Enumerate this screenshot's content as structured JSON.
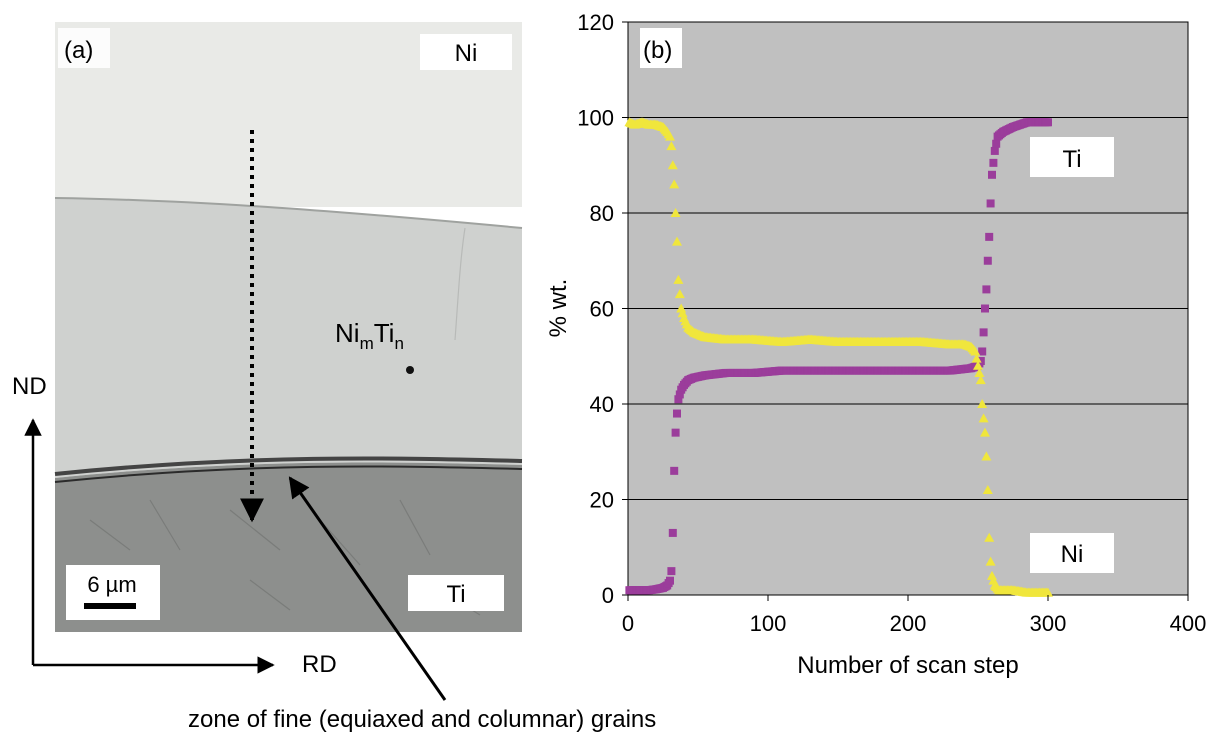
{
  "panel_a": {
    "label": "(a)",
    "phase_top": "Ni",
    "phase_bottom": "Ti",
    "phase_middle_base1": "Ni",
    "phase_middle_sub1": "m",
    "phase_middle_base2": "Ti",
    "phase_middle_sub2": "n",
    "scale_bar": "6 µm",
    "axis_nd": "ND",
    "axis_rd": "RD",
    "annotation": "zone of fine (equiaxed and columnar) grains"
  },
  "chart_data": {
    "type": "scatter",
    "panel_label": "(b)",
    "xlabel": "Number of scan step",
    "ylabel": "% wt.",
    "xlim": [
      0,
      400
    ],
    "ylim": [
      0,
      120
    ],
    "xticks": [
      "0",
      "100",
      "200",
      "300",
      "400"
    ],
    "yticks": [
      "0",
      "20",
      "40",
      "60",
      "80",
      "100",
      "120"
    ],
    "grid": "horizontal",
    "annotations": [
      "Ti",
      "Ni"
    ],
    "series": [
      {
        "marker": "square",
        "color": "#9b3d9b",
        "points": [
          [
            1,
            1
          ],
          [
            5,
            1
          ],
          [
            10,
            1
          ],
          [
            15,
            1
          ],
          [
            20,
            1.2
          ],
          [
            25,
            1.5
          ],
          [
            28,
            2
          ],
          [
            30,
            3
          ],
          [
            31,
            5
          ],
          [
            32,
            13
          ],
          [
            33,
            26
          ],
          [
            34,
            34
          ],
          [
            35,
            38
          ],
          [
            36,
            41
          ],
          [
            37,
            42
          ],
          [
            38,
            43
          ],
          [
            40,
            44
          ],
          [
            43,
            45
          ],
          [
            47,
            45.5
          ],
          [
            55,
            46
          ],
          [
            70,
            46.5
          ],
          [
            90,
            46.5
          ],
          [
            110,
            47
          ],
          [
            130,
            47
          ],
          [
            150,
            47
          ],
          [
            170,
            47
          ],
          [
            190,
            47
          ],
          [
            210,
            47
          ],
          [
            230,
            47
          ],
          [
            245,
            47.5
          ],
          [
            250,
            48
          ],
          [
            252,
            49
          ],
          [
            253,
            51
          ],
          [
            254,
            55
          ],
          [
            255,
            60
          ],
          [
            256,
            64
          ],
          [
            257,
            70
          ],
          [
            258,
            75
          ],
          [
            259,
            82
          ],
          [
            260,
            88
          ],
          [
            262,
            93
          ],
          [
            264,
            96
          ],
          [
            268,
            97
          ],
          [
            275,
            98
          ],
          [
            285,
            99
          ],
          [
            295,
            99
          ],
          [
            300,
            99
          ]
        ]
      },
      {
        "marker": "triangle",
        "color": "#f0e63c",
        "points": [
          [
            1,
            99
          ],
          [
            5,
            98.5
          ],
          [
            10,
            99
          ],
          [
            15,
            98.5
          ],
          [
            20,
            98.5
          ],
          [
            25,
            98
          ],
          [
            28,
            97
          ],
          [
            30,
            96
          ],
          [
            31,
            94
          ],
          [
            32,
            90
          ],
          [
            33,
            86
          ],
          [
            34,
            80
          ],
          [
            35,
            74
          ],
          [
            36,
            66
          ],
          [
            37,
            63
          ],
          [
            38,
            60
          ],
          [
            40,
            58
          ],
          [
            43,
            56
          ],
          [
            47,
            55
          ],
          [
            55,
            54
          ],
          [
            70,
            53.5
          ],
          [
            90,
            53.5
          ],
          [
            110,
            53
          ],
          [
            130,
            53.5
          ],
          [
            150,
            53
          ],
          [
            170,
            53
          ],
          [
            190,
            53
          ],
          [
            210,
            53
          ],
          [
            230,
            52.5
          ],
          [
            240,
            52.5
          ],
          [
            245,
            52
          ],
          [
            248,
            51
          ],
          [
            250,
            48
          ],
          [
            252,
            45
          ],
          [
            253,
            40
          ],
          [
            254,
            37
          ],
          [
            255,
            34
          ],
          [
            256,
            29
          ],
          [
            257,
            22
          ],
          [
            258,
            12
          ],
          [
            259,
            7
          ],
          [
            260,
            4
          ],
          [
            262,
            2
          ],
          [
            265,
            1
          ],
          [
            275,
            1
          ],
          [
            285,
            0.5
          ],
          [
            295,
            0.5
          ],
          [
            300,
            0.5
          ]
        ]
      }
    ]
  }
}
